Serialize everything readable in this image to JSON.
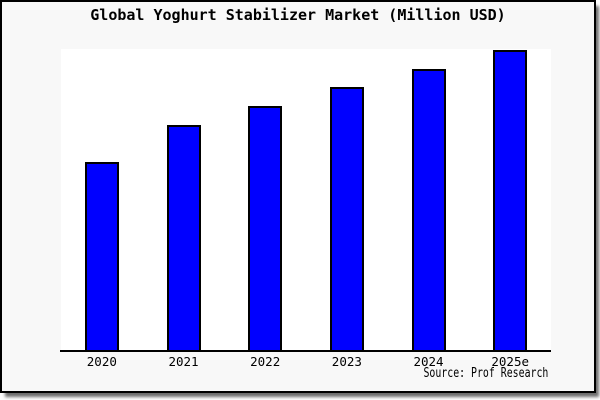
{
  "colors": {
    "page_bg": "#ffffff",
    "figure_bg": "#f8f8f8",
    "plot_bg": "#ffffff",
    "border": "#000000",
    "shadow": "#6e6e6e",
    "text": "#000000"
  },
  "chart_data": {
    "type": "bar",
    "title": "Global Yoghurt Stabilizer Market (Million USD)",
    "categories": [
      "2020",
      "2021",
      "2022",
      "2023",
      "2024",
      "2025e"
    ],
    "values": [
      62.5,
      74.8,
      81.1,
      87.4,
      93.4,
      99.7
    ],
    "value_scale": "percent of plot height (y-axis has no tick labels; tallest bar = 2025e nearly touches plot top)",
    "xlabel": "",
    "ylabel": "",
    "y_ticks_shown": false,
    "grid": false,
    "legend": false,
    "bar_color": "#0000ff",
    "bar_edge_color": "#000000",
    "source": "Source: Prof Research"
  }
}
